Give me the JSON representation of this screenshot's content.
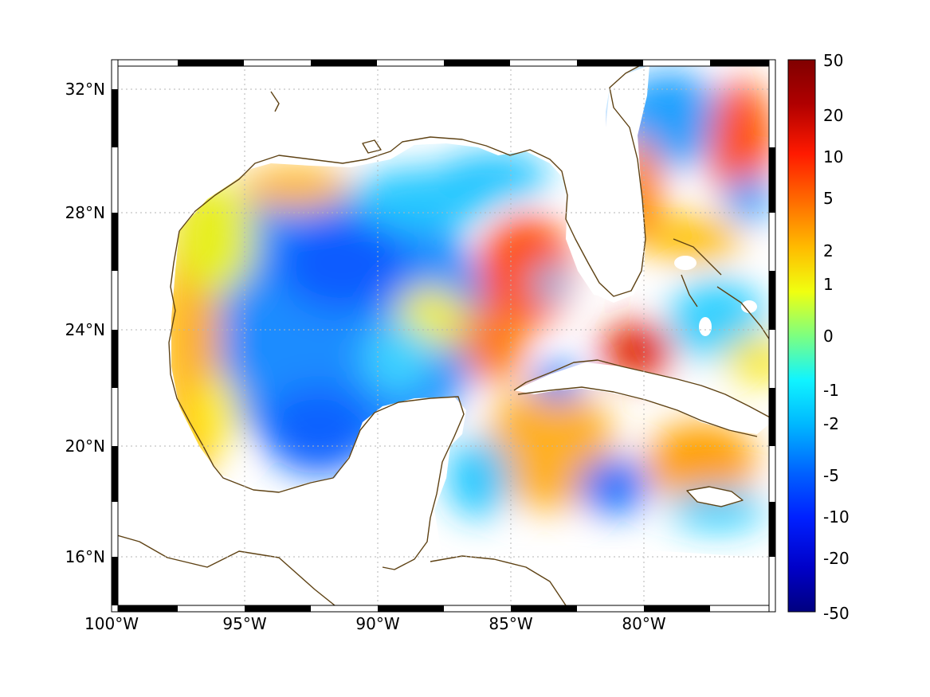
{
  "chart_data": {
    "type": "heatmap",
    "title": "",
    "xlabel": "",
    "ylabel": "",
    "x_ticks": [
      "100°W",
      "95°W",
      "90°W",
      "85°W",
      "80°W"
    ],
    "y_ticks": [
      "32°N",
      "28°N",
      "24°N",
      "20°N",
      "16°N"
    ],
    "xlim": [
      -100,
      -75
    ],
    "ylim": [
      14.2,
      33
    ],
    "colorbar": {
      "labels": [
        "50",
        "20",
        "10",
        "5",
        "2",
        "1",
        "0",
        "-1",
        "-2",
        "-5",
        "-10",
        "-20",
        "-50"
      ],
      "colors": [
        "#800000",
        "#c00000",
        "#ff2000",
        "#ff7a00",
        "#ffd000",
        "#e8ff18",
        "#7cff82",
        "#18f0ff",
        "#00c0ff",
        "#0070ff",
        "#0030ff",
        "#0000c0",
        "#000080"
      ]
    },
    "coastline_color": "#5e4214",
    "grid": true
  }
}
